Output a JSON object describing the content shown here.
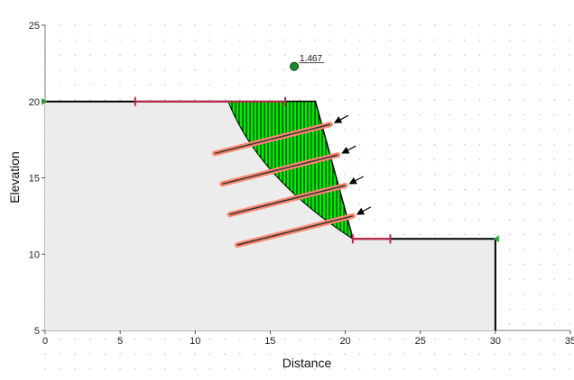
{
  "axes": {
    "x_title": "Distance",
    "y_title": "Elevation",
    "x_ticks": [
      0,
      5,
      10,
      15,
      20,
      25,
      30,
      35
    ],
    "y_ticks": [
      5,
      10,
      15,
      20,
      25
    ],
    "x_range": [
      0,
      35
    ],
    "y_range": [
      5,
      25
    ],
    "grid_dots": true
  },
  "colors": {
    "slope_fill": "#ececec",
    "slope_outline": "#000000",
    "slip_mass": "#00ee00",
    "slip_hatch": "#000000",
    "nail_grout": "#ff8870",
    "nail_bar": "#3a3a3a",
    "limits": "#c0264a",
    "support_marker": "#22aa33",
    "slip_center": "#1f8a2a"
  },
  "slope": {
    "profile": [
      [
        0,
        20
      ],
      [
        18,
        20
      ],
      [
        20.5,
        11
      ],
      [
        30,
        11
      ],
      [
        30,
        5
      ],
      [
        0,
        5
      ]
    ]
  },
  "slip_surface": {
    "safety_factor": "1.467",
    "center": [
      16.6,
      22.3
    ],
    "crest_intersect": [
      12.2,
      20
    ],
    "toe_intersect": [
      20.5,
      11
    ]
  },
  "nails": [
    {
      "head": [
        19.0,
        18.5
      ],
      "tip": [
        11.3,
        16.6
      ]
    },
    {
      "head": [
        19.5,
        16.5
      ],
      "tip": [
        11.8,
        14.6
      ]
    },
    {
      "head": [
        20.0,
        14.5
      ],
      "tip": [
        12.3,
        12.6
      ]
    },
    {
      "head": [
        20.5,
        12.5
      ],
      "tip": [
        12.8,
        10.6
      ]
    }
  ],
  "slip_limits": [
    {
      "from": [
        6,
        20
      ],
      "to": [
        16,
        20
      ]
    },
    {
      "from": [
        20.5,
        11
      ],
      "to": [
        23,
        11
      ]
    }
  ],
  "support_markers": [
    [
      0,
      20
    ],
    [
      30,
      11
    ]
  ]
}
